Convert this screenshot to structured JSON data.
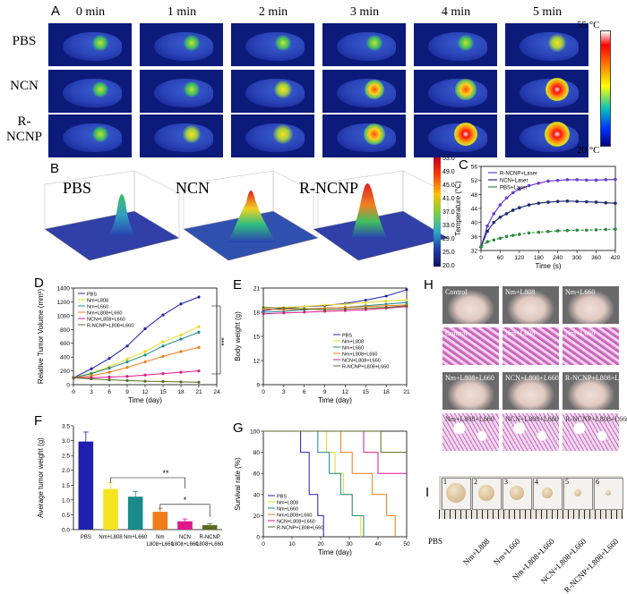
{
  "panelA": {
    "label": "A",
    "times": [
      "0 min",
      "1 min",
      "2 min",
      "3 min",
      "4 min",
      "5 min"
    ],
    "rows": [
      "PBS",
      "NCN",
      "R-\nNCNP"
    ],
    "scale_max": "55 °C",
    "scale_min": "20 °C"
  },
  "panelB": {
    "label": "B",
    "titles": [
      "PBS",
      "NCN",
      "R-NCNP"
    ],
    "scale_ticks": [
      "53.0",
      "49.0",
      "45.0",
      "41.0",
      "37.0",
      "33.0",
      "29.0",
      "25.0",
      "20.0"
    ]
  },
  "panelC": {
    "label": "C",
    "xlabel": "Time (s)",
    "ylabel": "Temperature (°C)",
    "legend": [
      "R-NCNP+Laser",
      "NCN+Laser",
      "PBS+Laser"
    ],
    "xticks": [
      "0",
      "60",
      "120",
      "180",
      "240",
      "300",
      "360",
      "420"
    ],
    "yticks": [
      "32",
      "36",
      "40",
      "44",
      "48",
      "52",
      "56"
    ]
  },
  "panelD": {
    "label": "D",
    "xlabel": "Time (day)",
    "ylabel": "Relative Tumor Volume (mm³)",
    "legend": [
      "PBS",
      "Nm+L808",
      "Nm+L660",
      "Nm+L808+L660",
      "NCN+L808+L660",
      "R-NCNP+L808+L660"
    ],
    "xticks": [
      "0",
      "3",
      "6",
      "9",
      "12",
      "15",
      "18",
      "21",
      "24"
    ],
    "yticks": [
      "0",
      "200",
      "400",
      "600",
      "800",
      "1000",
      "1200",
      "1400"
    ],
    "sig": "***"
  },
  "panelE": {
    "label": "E",
    "xlabel": "Time (day)",
    "ylabel": "Body weight (g)",
    "legend": [
      "PBS",
      "Nm+L808",
      "Nm+L660",
      "Nm+L808+L660",
      "NCN+L808+L660",
      "R-NCNP+L808+L660"
    ],
    "xticks": [
      "0",
      "3",
      "6",
      "9",
      "12",
      "15",
      "18",
      "21"
    ],
    "yticks": [
      "9",
      "12",
      "15",
      "18",
      "21"
    ]
  },
  "panelF": {
    "label": "F",
    "ylabel": "Average tumor weight (g)",
    "categories": [
      "PBS",
      "Nm+L808",
      "Nm+L660",
      "Nm\nL808+L660",
      "NCN\nL808+L660",
      "R-NCNP\nL808+L660"
    ],
    "yticks": [
      "0.0",
      "0.5",
      "1.0",
      "1.5",
      "2.0",
      "2.5",
      "3.0",
      "3.5"
    ],
    "sig1": "**",
    "sig2": "*"
  },
  "panelG": {
    "label": "G",
    "xlabel": "Time (day)",
    "ylabel": "Survival rate (%)",
    "legend": [
      "PBS",
      "Nm+L808",
      "Nm+L660",
      "Nm+L808+L660",
      "NCN+L808+L660",
      "R-NCNP+L808+L660"
    ],
    "xticks": [
      "0",
      "10",
      "20",
      "30",
      "40",
      "50"
    ],
    "yticks": [
      "0",
      "20",
      "40",
      "60",
      "80",
      "100"
    ]
  },
  "panelH": {
    "label": "H",
    "top_labels": [
      "Control",
      "Nm+L808",
      "Nm+L660"
    ],
    "bottom_labels": [
      "Nm+L808+L660",
      "NCN+L808+L660",
      "R-NCNP+L808+L660"
    ]
  },
  "panelI": {
    "label": "I",
    "numbers": [
      "1",
      "2",
      "3",
      "4",
      "5",
      "6"
    ],
    "groups": [
      "PBS",
      "Nm+L808",
      "Nm+L660",
      "Nm+L808+L660",
      "NCN+L808+L660",
      "R-NCNP+L808+L660"
    ]
  },
  "chart_data": [
    {
      "type": "line",
      "panel": "C",
      "x": [
        0,
        20,
        40,
        60,
        80,
        100,
        120,
        150,
        180,
        210,
        240,
        270,
        300,
        330,
        360,
        390,
        420
      ],
      "series": [
        {
          "name": "R-NCNP+Laser",
          "values": [
            33,
            39,
            42.5,
            45,
            47,
            48.5,
            49.5,
            50.5,
            51.2,
            51.8,
            52,
            52.2,
            52.2,
            52.1,
            52.1,
            52.2,
            52.3
          ]
        },
        {
          "name": "NCN+Laser",
          "values": [
            33,
            37.5,
            40,
            41.5,
            42.5,
            43.5,
            44.2,
            45,
            45.5,
            45.8,
            46,
            46.1,
            46,
            45.9,
            45.8,
            45.6,
            45.5
          ]
        },
        {
          "name": "PBS+Laser",
          "values": [
            33,
            34.5,
            35,
            35.5,
            36,
            36.3,
            36.6,
            37,
            37.2,
            37.4,
            37.6,
            37.7,
            37.8,
            37.8,
            37.9,
            38,
            38.1
          ]
        }
      ],
      "xlabel": "Time (s)",
      "ylabel": "Temperature (°C)",
      "ylim": [
        32,
        56
      ],
      "xlim": [
        0,
        420
      ]
    },
    {
      "type": "line",
      "panel": "D",
      "x": [
        0,
        3,
        6,
        9,
        12,
        15,
        18,
        21
      ],
      "series": [
        {
          "name": "PBS",
          "values": [
            100,
            230,
            380,
            560,
            810,
            1010,
            1170,
            1270
          ]
        },
        {
          "name": "Nm+L808",
          "values": [
            100,
            170,
            260,
            370,
            480,
            620,
            720,
            840
          ]
        },
        {
          "name": "Nm+L660",
          "values": [
            100,
            160,
            240,
            330,
            430,
            560,
            660,
            760
          ]
        },
        {
          "name": "Nm+L808+L660",
          "values": [
            100,
            130,
            180,
            250,
            330,
            410,
            480,
            540
          ]
        },
        {
          "name": "NCN+L808+L660",
          "values": [
            100,
            100,
            110,
            120,
            140,
            160,
            180,
            200
          ]
        },
        {
          "name": "R-NCNP+L808+L660",
          "values": [
            100,
            85,
            70,
            60,
            50,
            45,
            40,
            35
          ]
        }
      ],
      "xlabel": "Time (day)",
      "ylabel": "Relative Tumor Volume (mm³)",
      "ylim": [
        0,
        1400
      ],
      "xlim": [
        0,
        24
      ]
    },
    {
      "type": "line",
      "panel": "E",
      "x": [
        0,
        3,
        6,
        9,
        12,
        15,
        18,
        21
      ],
      "series": [
        {
          "name": "PBS",
          "values": [
            18.2,
            18.5,
            18.7,
            18.8,
            19.1,
            19.5,
            20,
            20.8
          ]
        },
        {
          "name": "Nm+L808",
          "values": [
            18.5,
            18.6,
            18.7,
            18.9,
            19,
            19.2,
            19.4,
            19.5
          ]
        },
        {
          "name": "Nm+L660",
          "values": [
            18,
            18.1,
            18.3,
            18.5,
            18.6,
            18.8,
            19,
            19.2
          ]
        },
        {
          "name": "Nm+L808+L660",
          "values": [
            18.4,
            18.3,
            18.4,
            18.5,
            18.6,
            18.7,
            18.8,
            18.9
          ]
        },
        {
          "name": "NCN+L808+L660",
          "values": [
            17.8,
            17.9,
            18,
            18.1,
            18.2,
            18.3,
            18.5,
            18.7
          ]
        },
        {
          "name": "R-NCNP+L808+L660",
          "values": [
            18.6,
            18.5,
            18.4,
            18.3,
            18.4,
            18.5,
            18.6,
            18.8
          ]
        }
      ],
      "xlabel": "Time (day)",
      "ylabel": "Body weight (g)",
      "ylim": [
        9,
        21
      ],
      "xlim": [
        0,
        21
      ]
    },
    {
      "type": "bar",
      "panel": "F",
      "categories": [
        "PBS",
        "Nm+L808",
        "Nm+L660",
        "Nm L808+L660",
        "NCN L808+L660",
        "R-NCNP L808+L660"
      ],
      "values": [
        2.97,
        1.37,
        1.11,
        0.6,
        0.28,
        0.15
      ],
      "errors": [
        0.32,
        0.22,
        0.18,
        0.12,
        0.08,
        0.05
      ],
      "colors": [
        "#1f1fb0",
        "#f5e51f",
        "#1a8a8a",
        "#f07b18",
        "#e0178a",
        "#5a6a20"
      ],
      "ylabel": "Average tumor weight (g)",
      "ylim": [
        0,
        3.5
      ]
    },
    {
      "type": "line",
      "panel": "G",
      "series": [
        {
          "name": "PBS",
          "x": [
            0,
            13,
            13,
            16,
            16,
            19,
            19,
            21,
            21
          ],
          "values": [
            100,
            100,
            80,
            80,
            40,
            40,
            20,
            20,
            0
          ]
        },
        {
          "name": "Nm+L808",
          "x": [
            0,
            22,
            22,
            25,
            25,
            28,
            28,
            31,
            31,
            34,
            34
          ],
          "values": [
            100,
            100,
            80,
            80,
            60,
            60,
            40,
            40,
            20,
            20,
            0
          ]
        },
        {
          "name": "Nm+L660",
          "x": [
            0,
            19,
            19,
            23,
            23,
            27,
            27,
            31,
            31,
            35,
            35
          ],
          "values": [
            100,
            100,
            80,
            80,
            60,
            60,
            40,
            40,
            20,
            20,
            0
          ]
        },
        {
          "name": "Nm+L808+L660",
          "x": [
            0,
            27,
            27,
            31,
            31,
            38,
            38,
            43,
            43,
            46,
            46
          ],
          "values": [
            100,
            100,
            80,
            80,
            60,
            60,
            40,
            40,
            20,
            20,
            0
          ]
        },
        {
          "name": "NCN+L808+L660",
          "x": [
            0,
            35,
            35,
            40,
            40,
            50
          ],
          "values": [
            100,
            100,
            80,
            80,
            60,
            60
          ]
        },
        {
          "name": "R-NCNP+L808+L660",
          "x": [
            0,
            41,
            41,
            50
          ],
          "values": [
            100,
            100,
            80,
            80
          ]
        }
      ],
      "xlabel": "Time (day)",
      "ylabel": "Survival rate (%)",
      "ylim": [
        0,
        100
      ],
      "xlim": [
        0,
        50
      ]
    }
  ]
}
